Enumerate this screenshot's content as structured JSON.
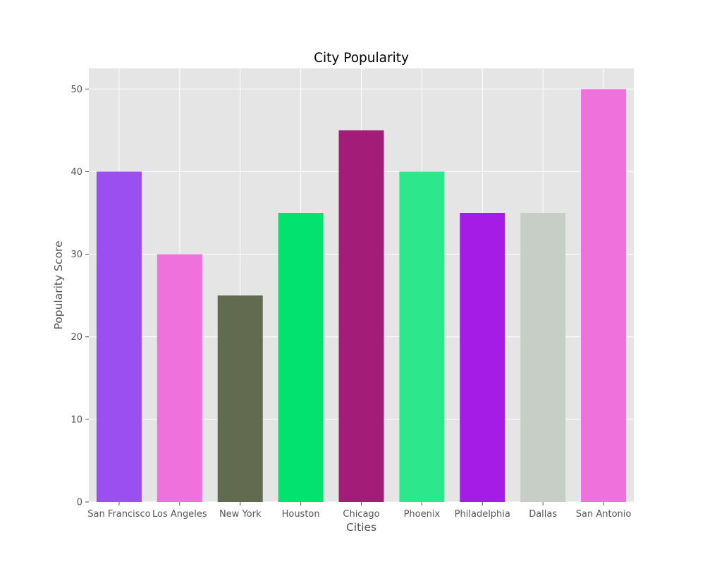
{
  "chart_data": {
    "type": "bar",
    "title": "City Popularity",
    "xlabel": "Cities",
    "ylabel": "Popularity Score",
    "categories": [
      "San Francisco",
      "Los Angeles",
      "New York",
      "Houston",
      "Chicago",
      "Phoenix",
      "Philadelphia",
      "Dallas",
      "San Antonio"
    ],
    "values": [
      40,
      30,
      25,
      35,
      45,
      40,
      35,
      35,
      50
    ],
    "colors": [
      "#9b4ff0",
      "#ef72dc",
      "#626b4f",
      "#02e26f",
      "#a21c78",
      "#2ce78c",
      "#a51ce6",
      "#c6cec6",
      "#ef72dc"
    ],
    "ylim": [
      0,
      52.5
    ],
    "yticks": [
      0,
      10,
      20,
      30,
      40,
      50
    ],
    "grid": true,
    "legend": "none",
    "plot_background": "#e5e5e5",
    "grid_color": "#ffffff"
  }
}
